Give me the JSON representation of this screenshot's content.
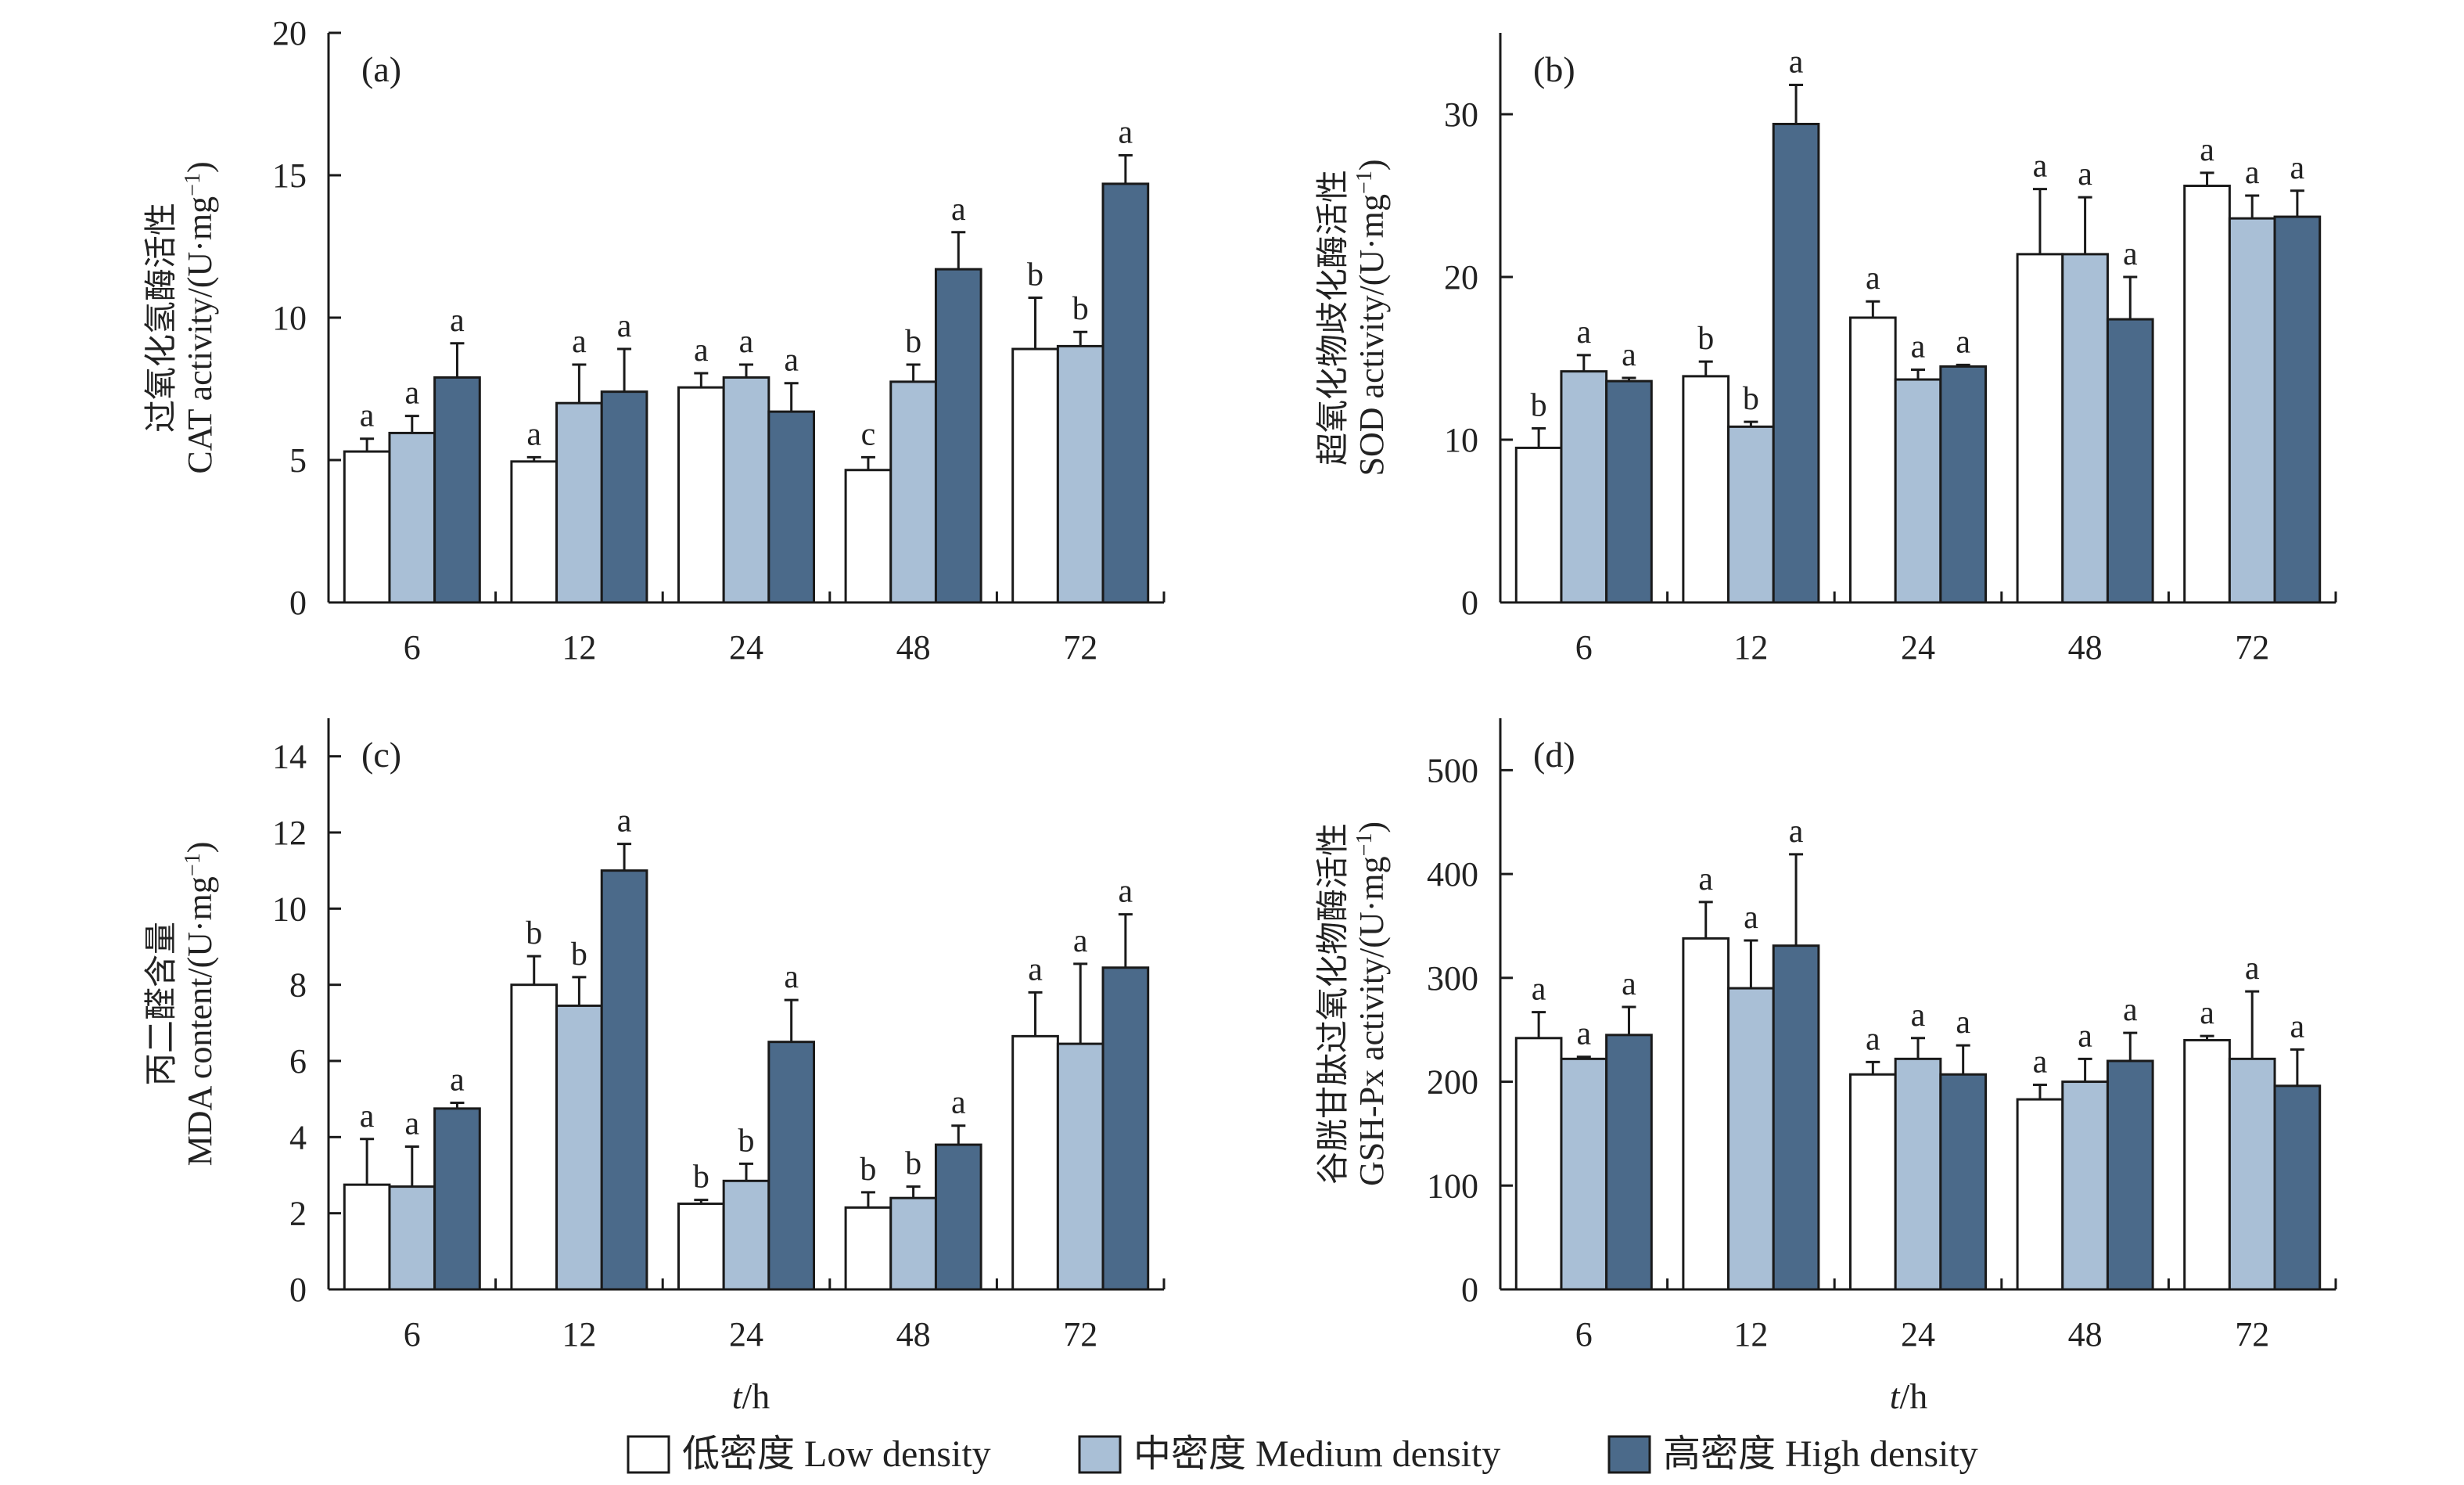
{
  "chart_data": [
    {
      "type": "bar",
      "panel": "(a)",
      "ylabel_cn": "过氧化氢酶活性",
      "ylabel_en": "CAT activity/(U·mg",
      "ylabel_sup": "−1",
      "ylabel_close": ")",
      "categories": [
        "6",
        "12",
        "24",
        "48",
        "72"
      ],
      "ylim": [
        0,
        20
      ],
      "yticks": [
        0,
        5,
        10,
        15,
        20
      ],
      "xlabel": "",
      "series": [
        {
          "name": "Low density",
          "values": [
            5.3,
            4.95,
            7.55,
            4.65,
            8.9
          ],
          "errors": [
            0.45,
            0.15,
            0.5,
            0.45,
            1.8
          ],
          "sig": [
            "a",
            "a",
            "a",
            "c",
            "b"
          ]
        },
        {
          "name": "Medium density",
          "values": [
            5.95,
            7.0,
            7.9,
            7.75,
            9.0
          ],
          "errors": [
            0.6,
            1.35,
            0.45,
            0.6,
            0.5
          ],
          "sig": [
            "a",
            "a",
            "a",
            "b",
            "b"
          ]
        },
        {
          "name": "High density",
          "values": [
            7.9,
            7.4,
            6.7,
            11.7,
            14.7
          ],
          "errors": [
            1.2,
            1.5,
            1.0,
            1.3,
            1.0
          ],
          "sig": [
            "a",
            "a",
            "a",
            "a",
            "a"
          ]
        }
      ]
    },
    {
      "type": "bar",
      "panel": "(b)",
      "ylabel_cn": "超氧化物歧化酶活性",
      "ylabel_en": "SOD activity/(U·mg",
      "ylabel_sup": "−1",
      "ylabel_close": ")",
      "categories": [
        "6",
        "12",
        "24",
        "48",
        "72"
      ],
      "ylim": [
        0,
        35
      ],
      "yticks": [
        0,
        10,
        20,
        30
      ],
      "xlabel": "",
      "series": [
        {
          "name": "Low density",
          "values": [
            9.5,
            13.9,
            17.5,
            21.4,
            25.6
          ],
          "errors": [
            1.2,
            0.9,
            1.0,
            4.0,
            0.8
          ],
          "sig": [
            "b",
            "b",
            "a",
            "a",
            "a"
          ]
        },
        {
          "name": "Medium density",
          "values": [
            14.2,
            10.8,
            13.7,
            21.4,
            23.6
          ],
          "errors": [
            1.0,
            0.3,
            0.6,
            3.5,
            1.4
          ],
          "sig": [
            "a",
            "b",
            "a",
            "a",
            "a"
          ]
        },
        {
          "name": "High density",
          "values": [
            13.6,
            29.4,
            14.5,
            17.4,
            23.7
          ],
          "errors": [
            0.2,
            2.4,
            0.1,
            2.6,
            1.6
          ],
          "sig": [
            "a",
            "a",
            "a",
            "a",
            "a"
          ]
        }
      ]
    },
    {
      "type": "bar",
      "panel": "(c)",
      "ylabel_cn": "丙二醛含量",
      "ylabel_en": "MDA content/(U·mg",
      "ylabel_sup": "−1",
      "ylabel_close": ")",
      "categories": [
        "6",
        "12",
        "24",
        "48",
        "72"
      ],
      "ylim": [
        0,
        15
      ],
      "yticks": [
        0,
        2,
        4,
        6,
        8,
        10,
        12,
        14
      ],
      "xlabel": "t/h",
      "series": [
        {
          "name": "Low density",
          "values": [
            2.75,
            8.0,
            2.25,
            2.15,
            6.65
          ],
          "errors": [
            1.2,
            0.75,
            0.1,
            0.4,
            1.15
          ],
          "sig": [
            "a",
            "b",
            "b",
            "b",
            "a"
          ]
        },
        {
          "name": "Medium density",
          "values": [
            2.7,
            7.45,
            2.85,
            2.4,
            6.45
          ],
          "errors": [
            1.05,
            0.75,
            0.45,
            0.3,
            2.1
          ],
          "sig": [
            "a",
            "b",
            "b",
            "b",
            "a"
          ]
        },
        {
          "name": "High density",
          "values": [
            4.75,
            11.0,
            6.5,
            3.8,
            8.45
          ],
          "errors": [
            0.15,
            0.7,
            1.1,
            0.5,
            1.4
          ],
          "sig": [
            "a",
            "a",
            "a",
            "a",
            "a"
          ]
        }
      ]
    },
    {
      "type": "bar",
      "panel": "(d)",
      "ylabel_cn": "谷胱甘肽过氧化物酶活性",
      "ylabel_en": "GSH-Px activity/(U·mg",
      "ylabel_sup": "−1",
      "ylabel_close": ")",
      "categories": [
        "6",
        "12",
        "24",
        "48",
        "72"
      ],
      "ylim": [
        0,
        550
      ],
      "yticks": [
        0,
        100,
        200,
        300,
        400,
        500
      ],
      "xlabel": "t/h",
      "series": [
        {
          "name": "Low density",
          "values": [
            242,
            338,
            207,
            183,
            240
          ],
          "errors": [
            25,
            35,
            12,
            14,
            4
          ],
          "sig": [
            "a",
            "a",
            "a",
            "a",
            "a"
          ]
        },
        {
          "name": "Medium density",
          "values": [
            222,
            290,
            222,
            200,
            222
          ],
          "errors": [
            2,
            46,
            20,
            22,
            65
          ],
          "sig": [
            "a",
            "a",
            "a",
            "a",
            "a"
          ]
        },
        {
          "name": "High density",
          "values": [
            245,
            331,
            207,
            220,
            196
          ],
          "errors": [
            27,
            88,
            28,
            27,
            35
          ],
          "sig": [
            "a",
            "a",
            "a",
            "a",
            "a"
          ]
        }
      ]
    }
  ],
  "xaxis_label": {
    "italic": "t",
    "rest": "/h"
  },
  "legend": [
    {
      "cn": "低密度",
      "en": "Low density",
      "color": "#ffffff"
    },
    {
      "cn": "中密度",
      "en": "Medium density",
      "color": "#a9bfd6"
    },
    {
      "cn": "高密度",
      "en": "High density",
      "color": "#4b6a8a"
    }
  ],
  "colors": {
    "low": "#ffffff",
    "medium": "#a9bfd6",
    "high": "#4b6a8a",
    "stroke": "#1a1a1a"
  }
}
